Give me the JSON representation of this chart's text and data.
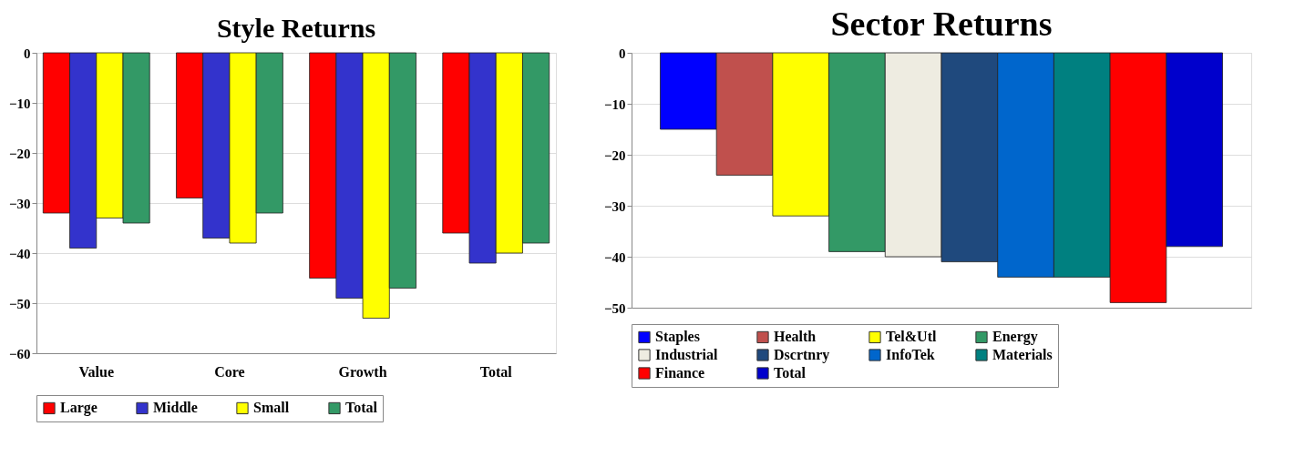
{
  "chart_data": [
    {
      "type": "bar",
      "title": "Style Returns",
      "categories": [
        "Value",
        "Core",
        "Growth",
        "Total"
      ],
      "ylim": [
        -60,
        0
      ],
      "yticks": [
        0,
        -10,
        -20,
        -30,
        -40,
        -50,
        -60
      ],
      "grid": "y",
      "legend": "bottom",
      "series": [
        {
          "name": "Large",
          "color": "#ff0000",
          "values": [
            -32,
            -29,
            -45,
            -36
          ]
        },
        {
          "name": "Middle",
          "color": "#3333cc",
          "values": [
            -39,
            -37,
            -49,
            -42
          ]
        },
        {
          "name": "Small",
          "color": "#ffff00",
          "values": [
            -33,
            -38,
            -53,
            -40
          ]
        },
        {
          "name": "Total",
          "color": "#339966",
          "values": [
            -34,
            -32,
            -47,
            -38
          ]
        }
      ]
    },
    {
      "type": "bar",
      "title": "Sector Returns",
      "categories": [
        null
      ],
      "ylim": [
        -50,
        0
      ],
      "yticks": [
        0,
        -10,
        -20,
        -30,
        -40,
        -50
      ],
      "grid": "y",
      "legend": "bottom",
      "tick_labels": "y",
      "series": [
        {
          "name": "Staples",
          "color": "#0000ff",
          "values": [
            -15
          ]
        },
        {
          "name": "Health",
          "color": "#c0504d",
          "values": [
            -24
          ]
        },
        {
          "name": "Tel&Utl",
          "color": "#ffff00",
          "values": [
            -32
          ]
        },
        {
          "name": "Energy",
          "color": "#339966",
          "values": [
            -39
          ]
        },
        {
          "name": "Industrial",
          "color": "#eeece1",
          "values": [
            -40
          ]
        },
        {
          "name": "Dscrtnry",
          "color": "#1f497d",
          "values": [
            -41
          ]
        },
        {
          "name": "InfoTek",
          "color": "#0066cc",
          "values": [
            -44
          ]
        },
        {
          "name": "Materials",
          "color": "#008080",
          "values": [
            -44
          ]
        },
        {
          "name": "Finance",
          "color": "#ff0000",
          "values": [
            -49
          ]
        },
        {
          "name": "Total",
          "color": "#0000cc",
          "values": [
            -38
          ]
        }
      ]
    }
  ]
}
